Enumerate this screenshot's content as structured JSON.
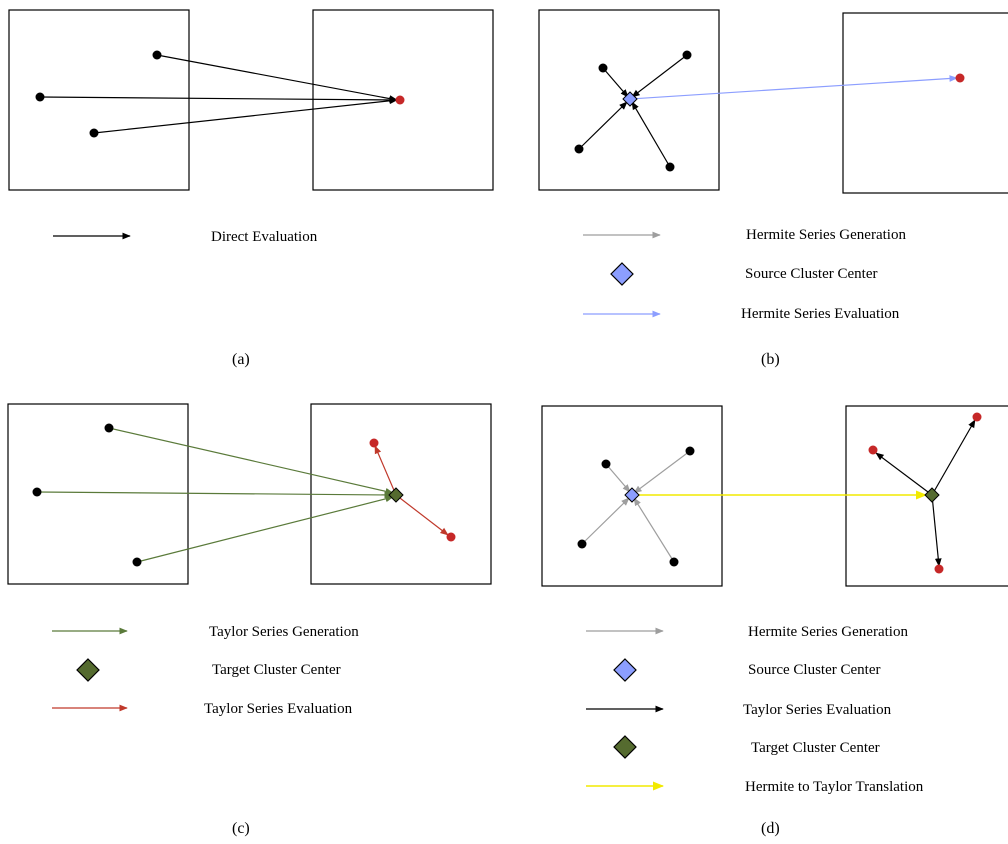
{
  "colors": {
    "black": "#000000",
    "point_source": "#000000",
    "point_target": "#c62828",
    "hermite_generation": "#9e9e9e",
    "hermite_evaluation": "#8c9eff",
    "source_center": "#8c9eff",
    "taylor_generation": "#5a7a3a",
    "target_center": "#556b2f",
    "taylor_evaluation": "#c0392b",
    "translation": "#f2ea00"
  },
  "panels": {
    "a": {
      "caption": "(a)",
      "legend": [
        {
          "label": "Direct Evaluation",
          "icon": "arrow-black"
        }
      ]
    },
    "b": {
      "caption": "(b)",
      "legend": [
        {
          "label": "Hermite Series Generation",
          "icon": "arrow-gray"
        },
        {
          "label": "Source Cluster Center",
          "icon": "diamond-blue"
        },
        {
          "label": "Hermite Series Evaluation",
          "icon": "arrow-blue"
        }
      ]
    },
    "c": {
      "caption": "(c)",
      "legend": [
        {
          "label": "Taylor Series Generation",
          "icon": "arrow-green"
        },
        {
          "label": "Target Cluster Center",
          "icon": "diamond-green"
        },
        {
          "label": "Taylor Series Evaluation",
          "icon": "arrow-red"
        }
      ]
    },
    "d": {
      "caption": "(d)",
      "legend": [
        {
          "label": "Hermite Series Generation",
          "icon": "arrow-gray"
        },
        {
          "label": "Source Cluster Center",
          "icon": "diamond-blue"
        },
        {
          "label": "Taylor Series Evaluation",
          "icon": "arrow-black"
        },
        {
          "label": "Target Cluster Center",
          "icon": "diamond-green"
        },
        {
          "label": "Hermite to Taylor Translation",
          "icon": "arrow-yellow"
        }
      ]
    }
  }
}
